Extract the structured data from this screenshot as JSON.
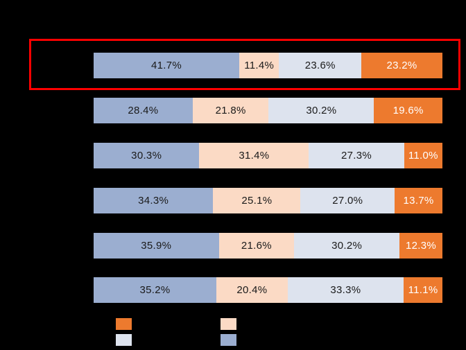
{
  "app": {
    "background_color": "#000000"
  },
  "chart_data": {
    "type": "bar",
    "orientation": "horizontal",
    "stacked": true,
    "value_unit": "%",
    "xlim": [
      0,
      100
    ],
    "title": "",
    "categories": [
      "",
      "",
      "",
      "",
      "",
      ""
    ],
    "series": [
      {
        "name": "segment-blue-gray",
        "color": "#9BAED0",
        "label_color": "#1A1A1A",
        "values": [
          41.7,
          28.4,
          30.3,
          34.3,
          35.9,
          35.2
        ]
      },
      {
        "name": "segment-peach",
        "color": "#FBDAC5",
        "label_color": "#1A1A1A",
        "values": [
          11.4,
          21.8,
          31.4,
          25.1,
          21.6,
          20.4
        ]
      },
      {
        "name": "segment-light-gray-blue",
        "color": "#DDE3EE",
        "label_color": "#1A1A1A",
        "values": [
          23.6,
          30.2,
          27.3,
          27.0,
          30.2,
          33.3
        ]
      },
      {
        "name": "segment-orange",
        "color": "#ED7A2E",
        "label_color": "#FFFFFF",
        "values": [
          23.2,
          19.6,
          11.0,
          13.7,
          12.3,
          11.1
        ]
      }
    ],
    "data_labels": [
      [
        "41.7%",
        "11.4%",
        "23.6%",
        "23.2%"
      ],
      [
        "28.4%",
        "21.8%",
        "30.2%",
        "19.6%"
      ],
      [
        "30.3%",
        "31.4%",
        "27.3%",
        "11.0%"
      ],
      [
        "34.3%",
        "25.1%",
        "27.0%",
        "13.7%"
      ],
      [
        "35.9%",
        "21.6%",
        "30.2%",
        "12.3%"
      ],
      [
        "35.2%",
        "20.4%",
        "33.3%",
        "11.1%"
      ]
    ],
    "highlight": {
      "row_index": 0,
      "border_color": "#FF0000"
    },
    "legend": {
      "position": "bottom",
      "grid": "2x2",
      "items": [
        {
          "label": "",
          "color": "#ED7A2E"
        },
        {
          "label": "",
          "color": "#FBDAC5"
        },
        {
          "label": "",
          "color": "#DDE3EE"
        },
        {
          "label": "",
          "color": "#9BAED0"
        }
      ]
    }
  }
}
